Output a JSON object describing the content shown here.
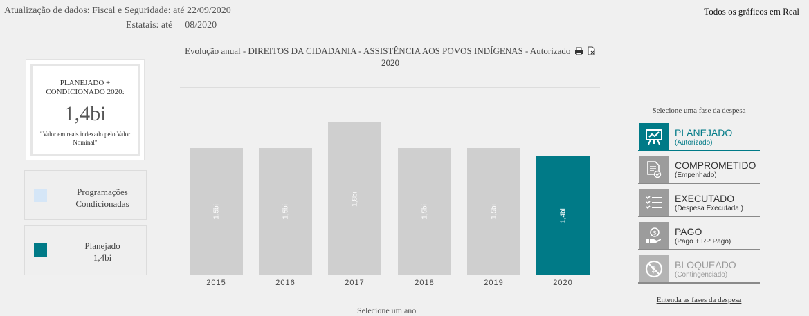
{
  "header": {
    "update_line1": "Atualização de dados: Fiscal e Seguridade: até 22/09/2020",
    "update_line2_label": "Estatais: até",
    "update_line2_value": "08/2020",
    "all_charts_real": "Todos os gráficos em Real"
  },
  "summary": {
    "title": "PLANEJADO + CONDICIONADO  2020:",
    "value": "1,4bi",
    "note": "\"Valor em reais indexado pelo Valor Nominal\""
  },
  "legend": {
    "programacoes_label": "Programações Condicionadas",
    "programacoes_color": "#d5e6f7",
    "planejado_label": "Planejado",
    "planejado_value": "1,4bi",
    "planejado_color": "#007a87"
  },
  "chart": {
    "title_line1": "Evolução anual - DIREITOS DA CIDADANIA - ASSISTÊNCIA AOS POVOS INDÍGENAS - Autorizado",
    "title_line2": "2020",
    "select_year": "Selecione um ano"
  },
  "chart_data": {
    "type": "bar",
    "categories": [
      "2015",
      "2016",
      "2017",
      "2018",
      "2019",
      "2020"
    ],
    "values": [
      1.5,
      1.5,
      1.8,
      1.5,
      1.5,
      1.4
    ],
    "value_labels": [
      "1,5bi",
      "1,5bi",
      "1,8bi",
      "1,5bi",
      "1,5bi",
      "1,4bi"
    ],
    "selected": "2020",
    "bar_color": "#cfcfcf",
    "selected_color": "#007a87",
    "ylim": [
      0,
      2.0
    ],
    "grid": false
  },
  "phases": {
    "header": "Selecione uma fase da despesa",
    "items": [
      {
        "label": "PLANEJADO",
        "sub": "(Autorizado)",
        "icon": "presentation-board-icon",
        "state": "active"
      },
      {
        "label": "COMPROMETIDO",
        "sub": "(Empenhado)",
        "icon": "document-check-icon",
        "state": "normal"
      },
      {
        "label": "EXECUTADO",
        "sub": "(Despesa Executada )",
        "icon": "checklist-icon",
        "state": "normal"
      },
      {
        "label": "PAGO",
        "sub": "(Pago + RP Pago)",
        "icon": "coin-hand-icon",
        "state": "normal"
      },
      {
        "label": "BLOQUEADO",
        "sub": "(Contingenciado)",
        "icon": "blocked-coin-icon",
        "state": "disabled"
      }
    ],
    "link": "Entenda as fases da despesa"
  }
}
